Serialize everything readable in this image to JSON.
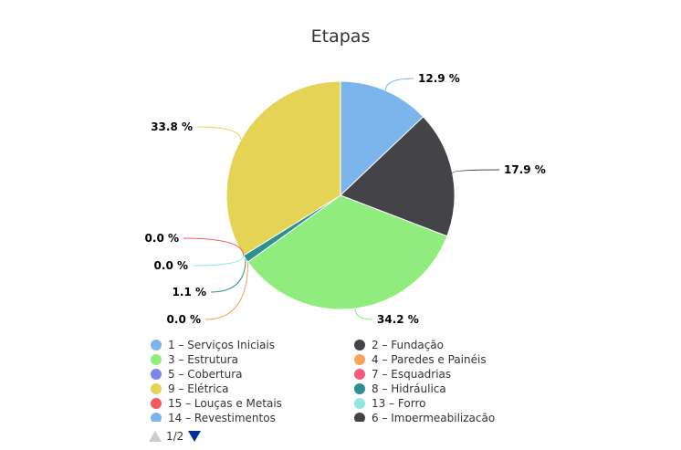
{
  "chart_data": {
    "type": "pie",
    "title": "Etapas",
    "series": [
      {
        "name": "1 – Serviços Iniciais",
        "value": 12.9,
        "label": "12.9 %",
        "color": "#7cb5ec"
      },
      {
        "name": "2 – Fundação",
        "value": 17.9,
        "label": "17.9 %",
        "color": "#434348"
      },
      {
        "name": "3 – Estrutura",
        "value": 34.2,
        "label": "34.2 %",
        "color": "#90ed7d"
      },
      {
        "name": "4 – Paredes e Painéis",
        "value": 0.0,
        "label": "0.0 %",
        "color": "#f7a35c"
      },
      {
        "name": "8 – Hidráulica",
        "value": 1.1,
        "label": "1.1 %",
        "color": "#2b908f"
      },
      {
        "name": "13 – Forro",
        "value": 0.0,
        "label": "0.0 %",
        "color": "#91e8e1"
      },
      {
        "name": "15 – Louças e Metais",
        "value": 0.0,
        "label": "0.0 %",
        "color": "#f45b5b"
      },
      {
        "name": "9 – Elétrica",
        "value": 33.8,
        "label": "33.8 %",
        "color": "#e4d354"
      }
    ]
  },
  "legend": {
    "items": [
      {
        "label": "1 – Serviços Iniciais",
        "color": "#7cb5ec"
      },
      {
        "label": "2 – Fundação",
        "color": "#434348"
      },
      {
        "label": "3 – Estrutura",
        "color": "#90ed7d"
      },
      {
        "label": "4 – Paredes e Painéis",
        "color": "#f7a35c"
      },
      {
        "label": "5 – Cobertura",
        "color": "#8085e9"
      },
      {
        "label": "7 – Esquadrias",
        "color": "#f15c80"
      },
      {
        "label": "9 – Elétrica",
        "color": "#e4d354"
      },
      {
        "label": "8 – Hidráulica",
        "color": "#2b908f"
      },
      {
        "label": "15 – Louças e Metais",
        "color": "#f45b5b"
      },
      {
        "label": "13 – Forro",
        "color": "#91e8e1"
      },
      {
        "label": "14 – Revestimentos",
        "color": "#7cb5ec"
      },
      {
        "label": "6 – Impermeabilização",
        "color": "#434348"
      }
    ]
  },
  "pager": {
    "text": "1/2"
  }
}
